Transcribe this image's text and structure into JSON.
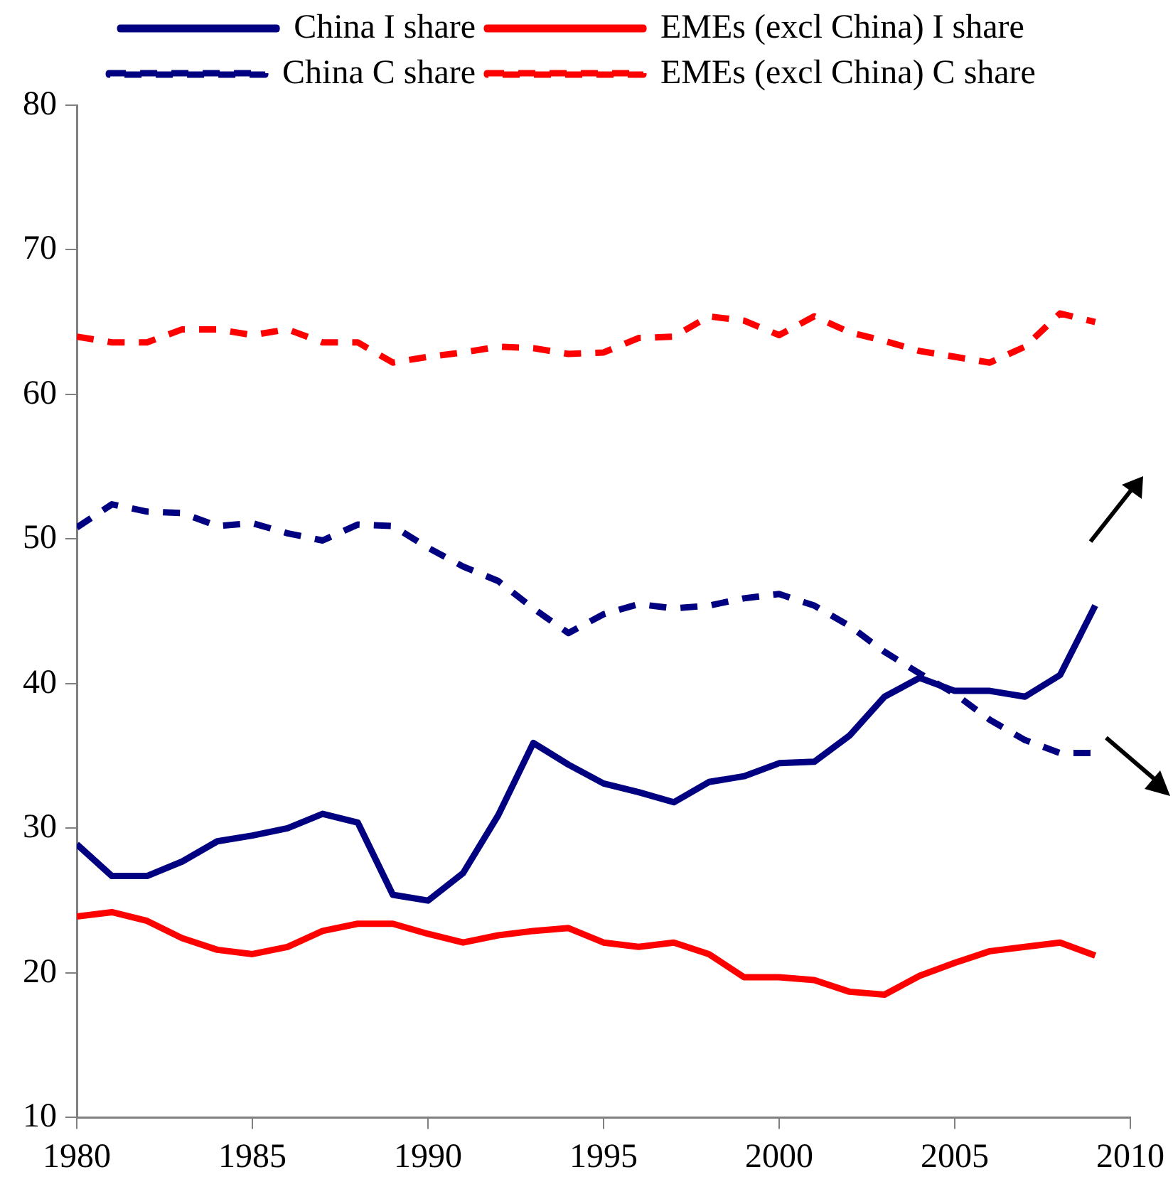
{
  "chart_data": {
    "type": "line",
    "grid": false,
    "legend": "top",
    "marker": "none",
    "x": [
      1980,
      1981,
      1982,
      1983,
      1984,
      1985,
      1986,
      1987,
      1988,
      1989,
      1990,
      1991,
      1992,
      1993,
      1994,
      1995,
      1996,
      1997,
      1998,
      1999,
      2000,
      2001,
      2002,
      2003,
      2004,
      2005,
      2006,
      2007,
      2008,
      2009
    ],
    "xlim": [
      1980,
      2010
    ],
    "xticks": [
      1980,
      1985,
      1990,
      1995,
      2000,
      2005,
      2010
    ],
    "ylim": [
      10,
      80
    ],
    "yticks": [
      10,
      20,
      30,
      40,
      50,
      60,
      70,
      80
    ],
    "series": [
      {
        "name": "China I share",
        "color": "#000080",
        "line_style": "solid",
        "values": [
          28.9,
          26.7,
          26.7,
          27.7,
          29.1,
          29.5,
          30.0,
          31.0,
          30.4,
          25.4,
          25.0,
          26.9,
          30.9,
          35.9,
          34.4,
          33.1,
          32.5,
          31.8,
          33.2,
          33.6,
          34.5,
          34.6,
          36.4,
          39.1,
          40.4,
          39.5,
          39.5,
          39.1,
          40.6,
          45.4
        ]
      },
      {
        "name": "EMEs (excl China) I share",
        "color": "#ff0000",
        "line_style": "solid",
        "values": [
          23.9,
          24.2,
          23.6,
          22.4,
          21.6,
          21.3,
          21.8,
          22.9,
          23.4,
          23.4,
          22.7,
          22.1,
          22.6,
          22.9,
          23.1,
          22.1,
          21.8,
          22.1,
          21.3,
          19.7,
          19.7,
          19.5,
          18.7,
          18.5,
          19.8,
          20.7,
          21.5,
          21.8,
          22.1,
          21.2
        ]
      },
      {
        "name": "China C share",
        "color": "#000080",
        "line_style": "dashed",
        "values": [
          50.8,
          52.4,
          51.9,
          51.8,
          50.9,
          51.1,
          50.4,
          49.9,
          51.0,
          50.9,
          49.4,
          48.1,
          47.1,
          45.2,
          43.5,
          44.8,
          45.5,
          45.2,
          45.4,
          45.9,
          46.2,
          45.4,
          44.0,
          42.2,
          40.7,
          39.3,
          37.5,
          36.1,
          35.2,
          35.2
        ]
      },
      {
        "name": "EMEs (excl China) C share",
        "color": "#ff0000",
        "line_style": "dashed",
        "values": [
          64.0,
          63.6,
          63.6,
          64.5,
          64.5,
          64.1,
          64.5,
          63.6,
          63.6,
          62.2,
          62.6,
          62.9,
          63.3,
          63.2,
          62.8,
          62.9,
          63.9,
          64.0,
          65.4,
          65.1,
          64.1,
          65.4,
          64.3,
          63.7,
          63.0,
          62.6,
          62.2,
          63.3,
          65.6,
          65.0
        ]
      }
    ]
  }
}
